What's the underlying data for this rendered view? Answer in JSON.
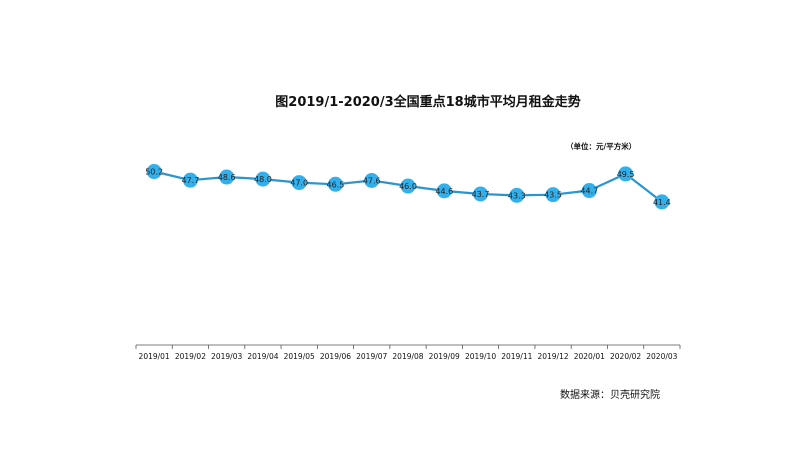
{
  "colors": {
    "line": "#2a95cf",
    "marker": "#33b0ec",
    "axis": "#555555"
  },
  "chart_data": {
    "type": "line",
    "title": "图2019/1-2020/3全国重点18城市平均月租金走势",
    "unit_label": "（单位：元/平方米）",
    "source": "数据来源：贝壳研究院",
    "categories": [
      "2019/01",
      "2019/02",
      "2019/03",
      "2019/04",
      "2019/05",
      "2019/06",
      "2019/07",
      "2019/08",
      "2019/09",
      "2019/10",
      "2019/11",
      "2019/12",
      "2020/01",
      "2020/02",
      "2020/03"
    ],
    "series": [
      {
        "values": [
          50.2,
          47.7,
          48.6,
          48.0,
          47.0,
          46.5,
          47.6,
          46.0,
          44.6,
          43.7,
          43.3,
          43.5,
          44.7,
          49.5,
          41.4
        ]
      }
    ],
    "data_labels": [
      "50.2",
      "47.7",
      "48.6",
      "48.0",
      "47.0",
      "46.5",
      "47.6",
      "46.0",
      "44.6",
      "43.7",
      "43.3",
      "43.5",
      "44.7",
      "49.5",
      "41.4"
    ],
    "ylim": [
      0,
      68
    ],
    "grid": false,
    "legend": "none"
  }
}
